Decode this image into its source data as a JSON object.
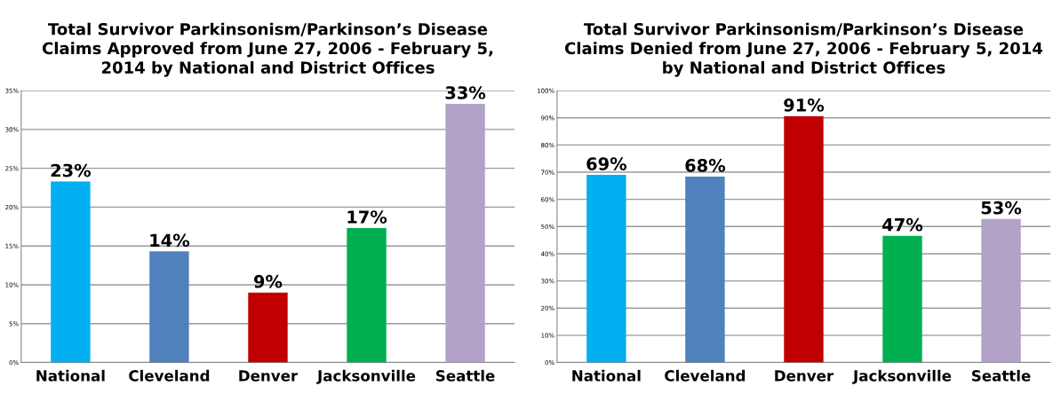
{
  "chart_data": [
    {
      "type": "bar",
      "title": "Total Survivor Parkinsonism/Parkinson’s Disease\nClaims Approved from June 27, 2006 - February 5,\n2014 by National and District Offices",
      "categories": [
        "National",
        "Cleveland",
        "Denver",
        "Jacksonville",
        "Seattle"
      ],
      "values": [
        23.3,
        14.3,
        9.0,
        17.3,
        33.3
      ],
      "colors": [
        "#00b0f0",
        "#4f81bd",
        "#c00000",
        "#00b050",
        "#b3a2c7"
      ],
      "value_labels": [
        "23%",
        "14%",
        "9%",
        "17%",
        "33%"
      ],
      "ylim": [
        0,
        35
      ],
      "yticks": [
        {
          "value": 0,
          "label": "0%"
        },
        {
          "value": 5,
          "label": "5%"
        },
        {
          "value": 10,
          "label": "10%"
        },
        {
          "value": 15,
          "label": "15%"
        },
        {
          "value": 20,
          "label": "20%"
        },
        {
          "value": 25,
          "label": "25%"
        },
        {
          "value": 30,
          "label": "30%"
        },
        {
          "value": 35,
          "label": "35%"
        }
      ],
      "grid": "y",
      "legend": false
    },
    {
      "type": "bar",
      "title": "Total Survivor Parkinsonism/Parkinson’s Disease\nClaims Denied from June 27, 2006 - February 5, 2014\nby National and District Offices",
      "categories": [
        "National",
        "Cleveland",
        "Denver",
        "Jacksonville",
        "Seattle"
      ],
      "values": [
        69.0,
        68.4,
        90.6,
        46.6,
        52.8
      ],
      "colors": [
        "#00b0f0",
        "#4f81bd",
        "#c00000",
        "#00b050",
        "#b3a2c7"
      ],
      "value_labels": [
        "69%",
        "68%",
        "91%",
        "47%",
        "53%"
      ],
      "ylim": [
        0,
        100
      ],
      "yticks": [
        {
          "value": 0,
          "label": "0%"
        },
        {
          "value": 10,
          "label": "10%"
        },
        {
          "value": 20,
          "label": "20%"
        },
        {
          "value": 30,
          "label": "30%"
        },
        {
          "value": 40,
          "label": "40%"
        },
        {
          "value": 50,
          "label": "50%"
        },
        {
          "value": 60,
          "label": "60%"
        },
        {
          "value": 70,
          "label": "70%"
        },
        {
          "value": 80,
          "label": "80%"
        },
        {
          "value": 90,
          "label": "90%"
        },
        {
          "value": 100,
          "label": "100%"
        }
      ],
      "grid": "y",
      "legend": false
    }
  ]
}
